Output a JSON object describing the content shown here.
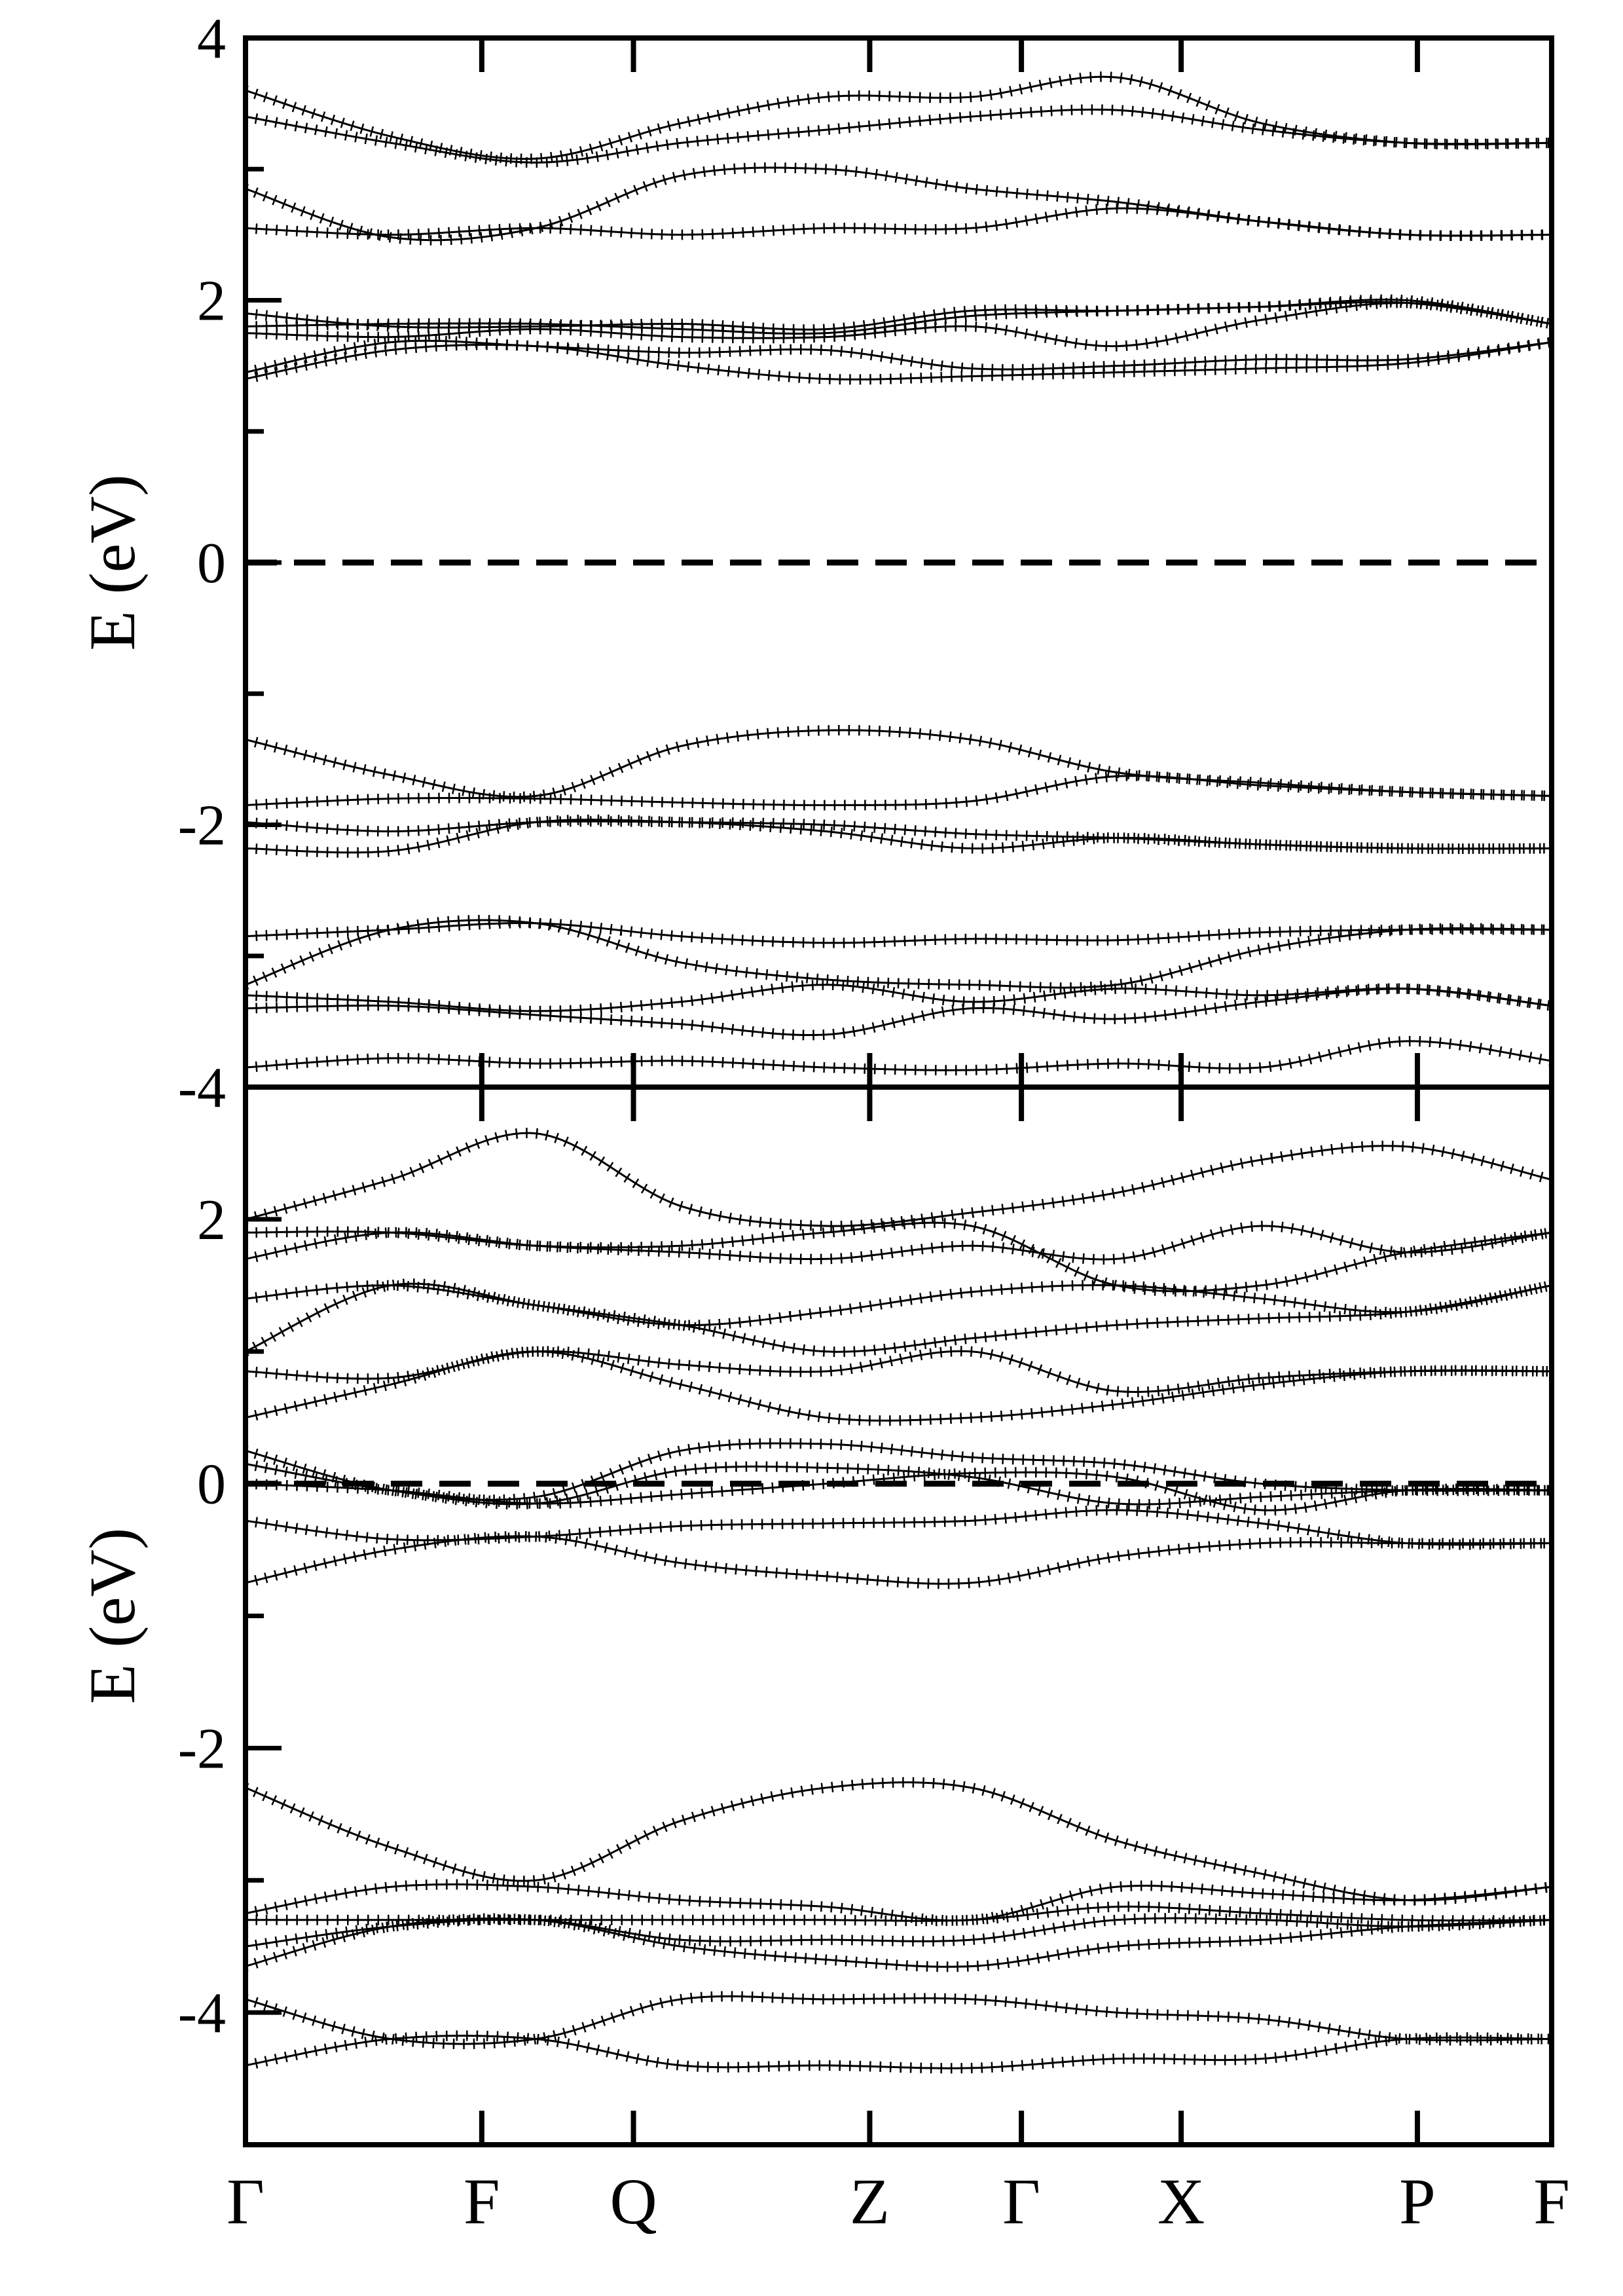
{
  "chart_data": [
    {
      "type": "line",
      "ylabel": "E (eV)",
      "ylim": [
        -4,
        4
      ],
      "yticks": [
        4,
        2,
        0,
        -2,
        -4
      ],
      "ytick_labels": [
        "4",
        "2",
        "0",
        "-2",
        "-4"
      ],
      "kpoints": [
        0,
        1.76,
        2.89,
        4.65,
        5.78,
        6.97,
        8.73,
        9.73
      ],
      "kpoint_labels": [
        "Γ",
        "F",
        "Q",
        "Z",
        "Γ",
        "X",
        "P",
        "F"
      ],
      "fermi_level": 0,
      "bands": [
        [
          -3.85,
          -3.78,
          -3.82,
          -3.8,
          -3.85,
          -3.87,
          -3.82,
          -3.85,
          -3.65,
          -3.8
        ],
        [
          -3.4,
          -3.38,
          -3.45,
          -3.52,
          -3.6,
          -3.4,
          -3.48,
          -3.35,
          -3.25,
          -3.38
        ],
        [
          -3.3,
          -3.35,
          -3.42,
          -3.35,
          -3.22,
          -3.35,
          -3.25,
          -3.3,
          -3.25,
          -3.38
        ],
        [
          -3.22,
          -2.8,
          -2.75,
          -3.05,
          -3.18,
          -3.22,
          -3.22,
          -2.95,
          -2.8,
          -2.8
        ],
        [
          -2.85,
          -2.8,
          -2.75,
          -2.85,
          -2.9,
          -2.87,
          -2.88,
          -2.82,
          -2.8,
          -2.8
        ],
        [
          -2.18,
          -2.2,
          -1.98,
          -1.98,
          -2.05,
          -2.18,
          -2.1,
          -2.15,
          -2.18,
          -2.18
        ],
        [
          -1.98,
          -2.05,
          -1.98,
          -1.98,
          -2.0,
          -2.07,
          -2.1,
          -2.15,
          -2.18,
          -2.18
        ],
        [
          -1.85,
          -1.8,
          -1.8,
          -1.83,
          -1.85,
          -1.82,
          -1.63,
          -1.7,
          -1.75,
          -1.78
        ],
        [
          -1.35,
          -1.62,
          -1.78,
          -1.4,
          -1.28,
          -1.35,
          -1.6,
          -1.68,
          -1.75,
          -1.78
        ],
        [
          1.4,
          1.62,
          1.65,
          1.5,
          1.4,
          1.42,
          1.45,
          1.48,
          1.52,
          1.68
        ],
        [
          1.45,
          1.68,
          1.65,
          1.6,
          1.62,
          1.48,
          1.5,
          1.55,
          1.55,
          1.68
        ],
        [
          1.75,
          1.72,
          1.78,
          1.72,
          1.72,
          1.8,
          1.65,
          1.85,
          1.98,
          1.82
        ],
        [
          1.8,
          1.82,
          1.82,
          1.78,
          1.75,
          1.88,
          1.92,
          1.95,
          2.0,
          1.82
        ],
        [
          1.9,
          1.8,
          1.8,
          1.82,
          1.78,
          1.92,
          1.92,
          1.95,
          1.98,
          1.82
        ],
        [
          2.55,
          2.5,
          2.55,
          2.5,
          2.55,
          2.55,
          2.7,
          2.6,
          2.5,
          2.5
        ],
        [
          2.85,
          2.48,
          2.55,
          2.95,
          3.0,
          2.85,
          2.75,
          2.6,
          2.5,
          2.5
        ],
        [
          3.4,
          3.2,
          3.05,
          3.2,
          3.3,
          3.4,
          3.45,
          3.3,
          3.2,
          3.2
        ],
        [
          3.6,
          3.25,
          3.08,
          3.35,
          3.55,
          3.55,
          3.7,
          3.35,
          3.2,
          3.2
        ]
      ]
    },
    {
      "type": "line",
      "ylabel": "E (eV)",
      "ylim": [
        -5,
        3
      ],
      "yticks": [
        2,
        0,
        -2,
        -4
      ],
      "ytick_labels": [
        "2",
        "0",
        "-2",
        "-4"
      ],
      "kpoints": [
        0,
        1.76,
        2.89,
        4.65,
        5.78,
        6.97,
        8.73,
        9.73
      ],
      "kpoint_labels": [
        "Γ",
        "F",
        "Q",
        "Z",
        "Γ",
        "X",
        "P",
        "F"
      ],
      "fermi_level": 0,
      "bands": [
        [
          -4.4,
          -4.2,
          -4.2,
          -4.4,
          -4.4,
          -4.42,
          -4.35,
          -4.35,
          -4.2,
          -4.2
        ],
        [
          -3.9,
          -4.2,
          -4.2,
          -3.9,
          -3.9,
          -3.9,
          -4.0,
          -4.05,
          -4.2,
          -4.2
        ],
        [
          -3.65,
          -3.35,
          -3.3,
          -3.5,
          -3.6,
          -3.65,
          -3.5,
          -3.45,
          -3.35,
          -3.3
        ],
        [
          -3.5,
          -3.35,
          -3.3,
          -3.45,
          -3.45,
          -3.45,
          -3.3,
          -3.3,
          -3.35,
          -3.3
        ],
        [
          -3.3,
          -3.3,
          -3.3,
          -3.3,
          -3.3,
          -3.3,
          -3.2,
          -3.25,
          -3.3,
          -3.3
        ],
        [
          -3.25,
          -3.05,
          -3.05,
          -3.15,
          -3.2,
          -3.3,
          -3.05,
          -3.1,
          -3.15,
          -3.05
        ],
        [
          -2.3,
          -2.75,
          -3.0,
          -2.55,
          -2.3,
          -2.3,
          -2.7,
          -2.95,
          -3.15,
          -3.05
        ],
        [
          -0.75,
          -0.5,
          -0.4,
          -0.6,
          -0.7,
          -0.75,
          -0.55,
          -0.45,
          -0.45,
          -0.45
        ],
        [
          -0.28,
          -0.42,
          -0.4,
          -0.32,
          -0.3,
          -0.28,
          -0.2,
          -0.3,
          -0.45,
          -0.45
        ],
        [
          0.0,
          -0.05,
          -0.15,
          -0.08,
          0.0,
          0.08,
          0.05,
          -0.2,
          -0.05,
          -0.05
        ],
        [
          0.15,
          -0.05,
          -0.15,
          0.1,
          0.12,
          0.05,
          -0.15,
          -0.1,
          -0.05,
          -0.05
        ],
        [
          0.25,
          -0.05,
          -0.1,
          0.25,
          0.3,
          0.2,
          0.15,
          0.0,
          -0.05,
          -0.05
        ],
        [
          0.5,
          0.75,
          1.0,
          0.75,
          0.5,
          0.5,
          0.6,
          0.75,
          0.85,
          0.85
        ],
        [
          0.85,
          0.8,
          1.0,
          0.9,
          0.85,
          1.0,
          0.7,
          0.8,
          0.85,
          0.85
        ],
        [
          1.0,
          1.5,
          1.35,
          1.2,
          1.0,
          1.1,
          1.2,
          1.25,
          1.3,
          1.5
        ],
        [
          1.4,
          1.5,
          1.35,
          1.2,
          1.3,
          1.45,
          1.5,
          1.4,
          1.3,
          1.5
        ],
        [
          1.7,
          1.9,
          1.8,
          1.75,
          1.7,
          1.8,
          1.7,
          1.95,
          1.75,
          1.9
        ],
        [
          1.9,
          1.9,
          1.8,
          1.8,
          1.9,
          1.95,
          1.5,
          1.5,
          1.75,
          1.9
        ],
        [
          2.0,
          2.3,
          2.65,
          2.1,
          1.95,
          2.05,
          2.2,
          2.45,
          2.55,
          2.3
        ]
      ]
    }
  ]
}
